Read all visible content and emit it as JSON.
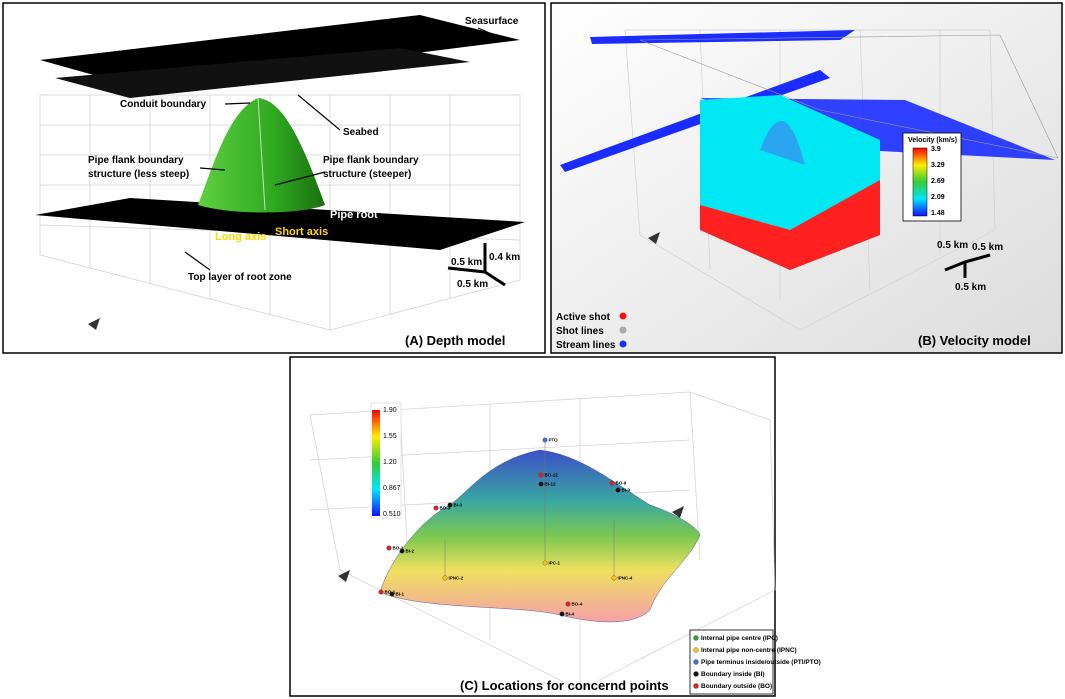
{
  "panels": {
    "depth": {
      "caption": "(A) Depth model",
      "labels": {
        "seasurface": "Seasurface",
        "conduit": "Conduit boundary",
        "seabed": "Seabed",
        "flank_less_1": "Pipe flank boundary",
        "flank_less_2": "structure (less steep)",
        "flank_steep_1": "Pipe flank boundary",
        "flank_steep_2": "structure (steeper)",
        "root": "Pipe root",
        "long_axis": "Long axis",
        "short_axis": "Short axis",
        "top_layer": "Top layer of root zone"
      },
      "scale": [
        "0.5 km",
        "0.4 km",
        "0.5 km"
      ]
    },
    "velocity": {
      "caption": "(B) Velocity model",
      "colorbar": {
        "title": "Velocity (km/s)",
        "ticks": [
          "3.9",
          "3.29",
          "2.69",
          "2.09",
          "1.48"
        ]
      },
      "legend": [
        "Active shot",
        "Shot lines",
        "Stream lines"
      ],
      "scale": [
        "0.5 km",
        "0.5 km",
        "0.5 km"
      ]
    },
    "locations": {
      "caption": "(C) Locations for concernd points",
      "colorbar": {
        "ticks": [
          "1.90",
          "1.55",
          "1.20",
          "0.867",
          "0.510"
        ]
      },
      "legend": [
        "Internal pipe centre (IPC)",
        "Internal pipe non-centre (IPNC)",
        "Pipe terminus inside/outside (PTI/PTO)",
        "Boundary inside (BI)",
        "Boundary outside (BO)"
      ],
      "points": [
        "PTO",
        "BO-12",
        "BI-12",
        "BO-1",
        "BI-1",
        "BO-2",
        "BI-2",
        "BO-3",
        "BI-3",
        "BO-4",
        "BI-4",
        "BO-9",
        "BI-9",
        "IPNC-2",
        "IPNC-4",
        "IPC-1"
      ]
    }
  }
}
